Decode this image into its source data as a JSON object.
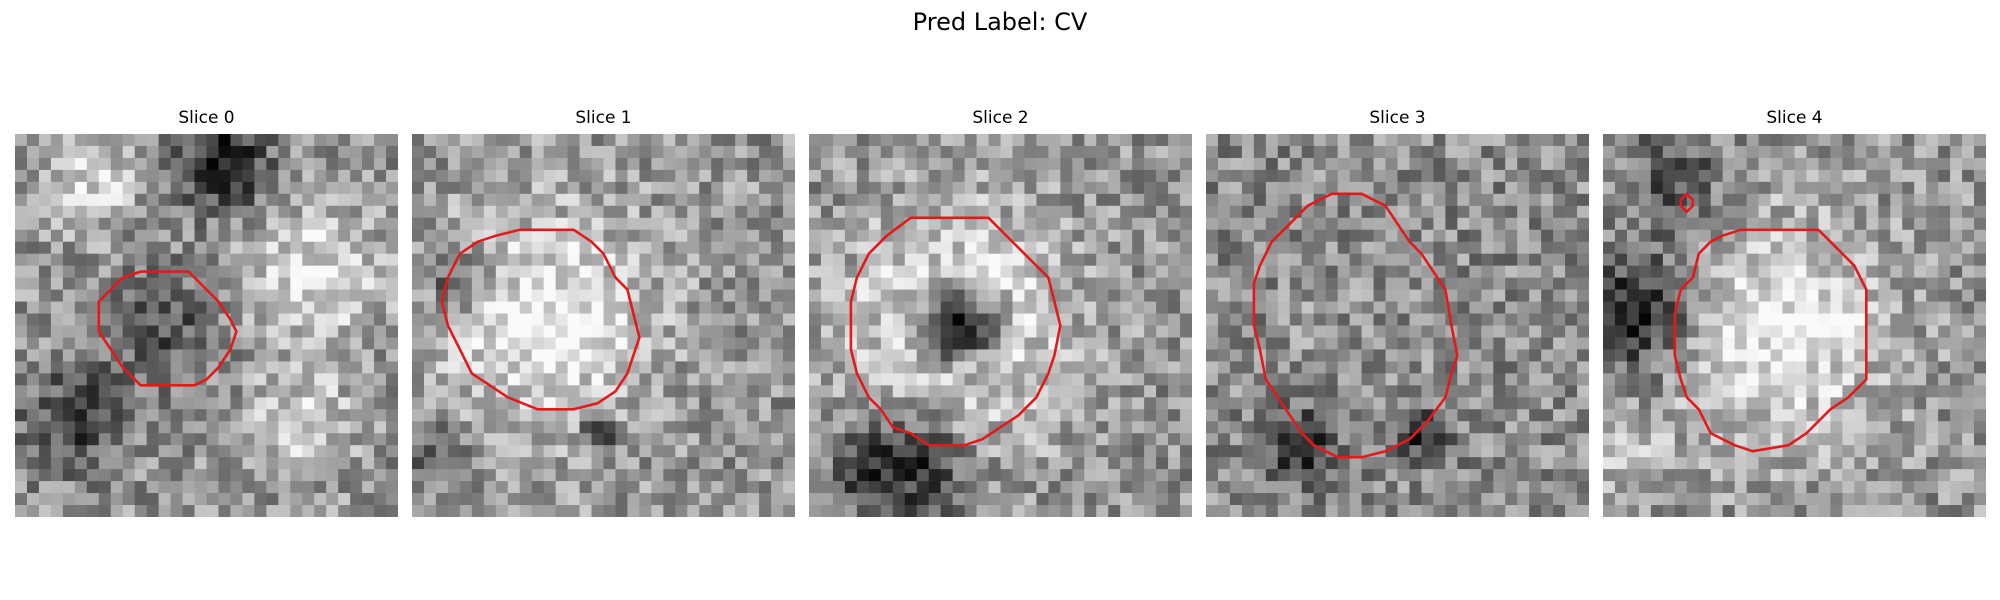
{
  "figure": {
    "title": "Pred Label: CV",
    "contour_color": "#e31a1c",
    "colormap": "grayscale",
    "panels": [
      {
        "title": "Slice 0",
        "contour": [
          [
            12.5,
            11.5
          ],
          [
            14.5,
            11.5
          ],
          [
            15.5,
            12.5
          ],
          [
            17,
            14
          ],
          [
            18,
            15.5
          ],
          [
            18.5,
            16.5
          ],
          [
            18,
            18
          ],
          [
            17,
            19.5
          ],
          [
            16,
            20.5
          ],
          [
            15,
            21
          ],
          [
            12,
            21
          ],
          [
            10.5,
            21
          ],
          [
            10,
            20.5
          ],
          [
            9,
            19.5
          ],
          [
            8,
            18
          ],
          [
            7,
            16.5
          ],
          [
            7,
            14
          ],
          [
            8,
            13
          ],
          [
            9,
            12
          ],
          [
            10.5,
            11.5
          ]
        ],
        "features": [
          {
            "cx": 17.5,
            "cy": 2.5,
            "r": 2.6,
            "v": -0.55
          },
          {
            "cx": 5,
            "cy": 24,
            "r": 3,
            "v": -0.35
          },
          {
            "cx": 25,
            "cy": 12,
            "r": 4,
            "v": 0.3
          },
          {
            "cx": 6,
            "cy": 4,
            "r": 3,
            "v": 0.25
          },
          {
            "cx": 12.5,
            "cy": 16,
            "r": 3.5,
            "v": -0.25
          },
          {
            "cx": 24,
            "cy": 24,
            "r": 3,
            "v": 0.25
          }
        ]
      },
      {
        "title": "Slice 1",
        "contour": [
          [
            9,
            8
          ],
          [
            13.5,
            8
          ],
          [
            15,
            9
          ],
          [
            16,
            10
          ],
          [
            17,
            12
          ],
          [
            18,
            13
          ],
          [
            18.5,
            15
          ],
          [
            19,
            17
          ],
          [
            18.5,
            18.5
          ],
          [
            18,
            20
          ],
          [
            17,
            21.5
          ],
          [
            15.5,
            22.5
          ],
          [
            13.5,
            23
          ],
          [
            10.5,
            23
          ],
          [
            8,
            22
          ],
          [
            6.5,
            21
          ],
          [
            5,
            20
          ],
          [
            4,
            18
          ],
          [
            3,
            16
          ],
          [
            2.5,
            14
          ],
          [
            3,
            12
          ],
          [
            4,
            10
          ],
          [
            5.5,
            9
          ],
          [
            7,
            8.5
          ]
        ],
        "features": [
          {
            "cx": 11,
            "cy": 15.5,
            "r": 6.5,
            "v": 0.35
          },
          {
            "cx": 4,
            "cy": 12,
            "r": 2,
            "v": -0.35
          },
          {
            "cx": 15.5,
            "cy": 25,
            "r": 1,
            "v": -0.5
          },
          {
            "cx": 2,
            "cy": 26,
            "r": 2,
            "v": -0.25
          }
        ]
      },
      {
        "title": "Slice 2",
        "contour": [
          [
            8.5,
            7
          ],
          [
            15,
            7
          ],
          [
            16,
            8
          ],
          [
            18,
            10
          ],
          [
            19,
            11
          ],
          [
            20,
            12
          ],
          [
            20.5,
            14
          ],
          [
            21,
            16
          ],
          [
            20.5,
            18.5
          ],
          [
            20,
            20
          ],
          [
            19,
            22
          ],
          [
            17.5,
            23.5
          ],
          [
            16,
            24.5
          ],
          [
            14.5,
            25.5
          ],
          [
            13,
            26
          ],
          [
            10,
            26
          ],
          [
            8.5,
            25
          ],
          [
            7,
            24.5
          ],
          [
            6,
            23
          ],
          [
            5,
            22
          ],
          [
            4,
            20
          ],
          [
            3.5,
            18
          ],
          [
            3.5,
            14
          ],
          [
            4,
            12
          ],
          [
            5,
            10
          ],
          [
            6.5,
            8.5
          ]
        ],
        "features": [
          {
            "cx": 12.5,
            "cy": 16,
            "r": 7.5,
            "v": 0.5
          },
          {
            "cx": 12.5,
            "cy": 16,
            "r": 2.3,
            "v": -0.85
          },
          {
            "cx": 12.5,
            "cy": 16,
            "r": 10,
            "v": -0.15
          },
          {
            "cx": 9,
            "cy": 27.5,
            "r": 3,
            "v": -0.45
          },
          {
            "cx": 4,
            "cy": 28,
            "r": 2,
            "v": -0.25
          }
        ]
      },
      {
        "title": "Slice 3",
        "contour": [
          [
            10.5,
            5
          ],
          [
            13,
            5
          ],
          [
            15,
            6
          ],
          [
            16,
            7.5
          ],
          [
            17,
            9
          ],
          [
            18,
            10
          ],
          [
            19,
            11.5
          ],
          [
            20,
            13
          ],
          [
            20.5,
            16
          ],
          [
            21,
            18.5
          ],
          [
            20.5,
            20
          ],
          [
            20,
            22
          ],
          [
            18.5,
            24
          ],
          [
            17,
            25.5
          ],
          [
            15,
            26.5
          ],
          [
            13,
            27
          ],
          [
            11,
            27
          ],
          [
            9,
            26
          ],
          [
            8,
            25
          ],
          [
            7,
            23.5
          ],
          [
            6,
            22
          ],
          [
            5,
            20.5
          ],
          [
            4.5,
            18
          ],
          [
            4,
            16
          ],
          [
            4,
            12.5
          ],
          [
            4.5,
            11
          ],
          [
            5.5,
            9
          ],
          [
            7,
            7.5
          ],
          [
            8.5,
            6
          ]
        ],
        "features": [
          {
            "cx": 12.5,
            "cy": 16.5,
            "r": 8,
            "v": 0.15
          },
          {
            "cx": 12.5,
            "cy": 16.5,
            "r": 11.5,
            "v": -0.15
          },
          {
            "cx": 8,
            "cy": 26,
            "r": 2,
            "v": -0.45
          },
          {
            "cx": 18,
            "cy": 25,
            "r": 1.5,
            "v": -0.35
          }
        ]
      },
      {
        "title": "Slice 4",
        "contour": [
          [
            11.5,
            8
          ],
          [
            18,
            8
          ],
          [
            19,
            9
          ],
          [
            20,
            10
          ],
          [
            21,
            11
          ],
          [
            22,
            13
          ],
          [
            22,
            17
          ],
          [
            22,
            20.5
          ],
          [
            20.5,
            22
          ],
          [
            19,
            23
          ],
          [
            18,
            24
          ],
          [
            17,
            25
          ],
          [
            15.5,
            26
          ],
          [
            12.5,
            26.5
          ],
          [
            11,
            26
          ],
          [
            9,
            25
          ],
          [
            8,
            23
          ],
          [
            7,
            22
          ],
          [
            6.5,
            20.5
          ],
          [
            6,
            18.5
          ],
          [
            6,
            15
          ],
          [
            6.5,
            13
          ],
          [
            7.5,
            12
          ],
          [
            8,
            10
          ],
          [
            9,
            9
          ],
          [
            10,
            8.5
          ]
        ],
        "features": [
          {
            "cx": 14.5,
            "cy": 16.5,
            "r": 6.5,
            "v": 0.35
          },
          {
            "cx": 3,
            "cy": 15,
            "r": 3.5,
            "v": -0.5
          },
          {
            "cx": 6,
            "cy": 4,
            "r": 3,
            "v": -0.3
          },
          {
            "cx": 2,
            "cy": 27,
            "r": 2.5,
            "v": 0.2
          }
        ],
        "small_contour": [
          [
            6.5,
            5.5
          ],
          [
            7,
            5
          ],
          [
            7.5,
            5.5
          ],
          [
            7.5,
            6
          ],
          [
            7,
            6.5
          ],
          [
            6.5,
            6
          ]
        ]
      }
    ]
  }
}
